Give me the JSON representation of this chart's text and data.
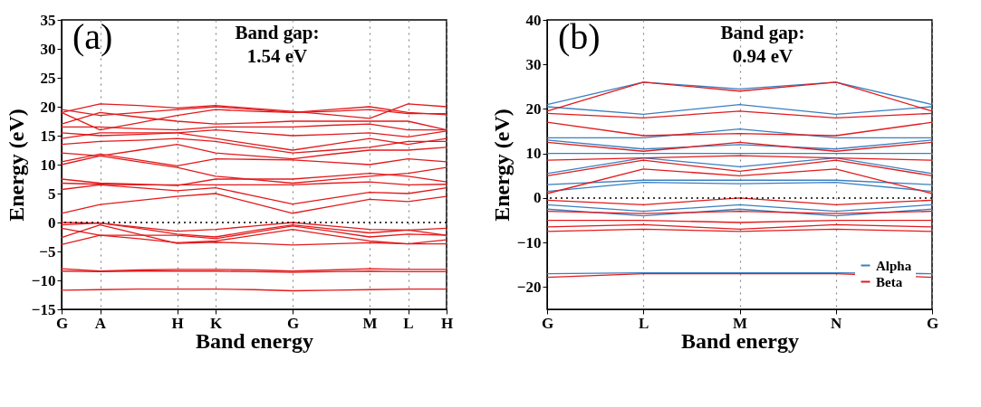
{
  "chart_data": [
    {
      "type": "line",
      "xlabel": "Band energy",
      "ylabel": "Energy (eV)",
      "annotations": [
        "(a)",
        "Band gap:",
        "1.54 eV"
      ],
      "categories": [
        "G",
        "A",
        null,
        "H",
        "K",
        null,
        "G",
        null,
        "M",
        "L",
        "H"
      ],
      "ylim": [
        -15,
        35
      ],
      "yticks": [
        -15,
        -10,
        -5,
        0,
        5,
        10,
        15,
        20,
        25,
        30,
        35
      ],
      "grid": "x",
      "legend": false,
      "ref_lines": [
        {
          "axis": "y",
          "value": 0,
          "color": "#000000",
          "line_style": "dotted"
        }
      ],
      "series": [
        {
          "color": "#e31a1c",
          "values": [
            -11.7,
            -11.6,
            -11.5,
            -11.5,
            -11.5,
            -11.6,
            -11.8,
            -11.7,
            -11.6,
            -11.5,
            -11.5
          ]
        },
        {
          "color": "#e31a1c",
          "values": [
            -8.0,
            -8.4,
            -8.2,
            -8.1,
            -8.1,
            -8.2,
            -8.4,
            -8.2,
            -8.0,
            -8.1,
            -8.1
          ]
        },
        {
          "color": "#e31a1c",
          "values": [
            -8.4,
            -8.5,
            -8.4,
            -8.4,
            -8.4,
            -8.5,
            -8.6,
            -8.5,
            -8.4,
            -8.5,
            -8.5
          ]
        },
        {
          "color": "#e31a1c",
          "values": [
            0,
            -0.1,
            -0.8,
            -1.5,
            -1.2,
            -0.6,
            0,
            -0.6,
            -1.2,
            -1.3,
            -1.0
          ]
        },
        {
          "color": "#e31a1c",
          "values": [
            -0.4,
            -0.1,
            -1.0,
            -2.0,
            -2.5,
            -1.4,
            -0.4,
            -1.1,
            -1.8,
            -1.3,
            -2.2
          ]
        },
        {
          "color": "#e31a1c",
          "values": [
            -1.0,
            -2.2,
            -2.2,
            -2.2,
            -2.8,
            -1.7,
            -0.6,
            -1.5,
            -2.5,
            -2.0,
            -2.2
          ]
        },
        {
          "color": "#e31a1c",
          "values": [
            -3.8,
            -2.2,
            -2.8,
            -3.5,
            -3.2,
            -2.2,
            -1.2,
            -2.2,
            -3.2,
            -3.7,
            -3.7
          ]
        },
        {
          "color": "#e31a1c",
          "values": [
            -2.6,
            -0.4,
            -2.0,
            -3.6,
            -3.4,
            -3.6,
            -3.9,
            -3.7,
            -3.5,
            -3.7,
            -3.0
          ]
        },
        {
          "color": "#e31a1c",
          "values": [
            1.6,
            3.1,
            3.8,
            4.5,
            5.0,
            3.3,
            1.6,
            2.8,
            4.0,
            3.6,
            4.5
          ]
        },
        {
          "color": "#e31a1c",
          "values": [
            5.7,
            6.5,
            6.0,
            5.5,
            6.0,
            4.6,
            3.2,
            4.2,
            5.2,
            5.0,
            6.0
          ]
        },
        {
          "color": "#e31a1c",
          "values": [
            6.8,
            6.6,
            6.5,
            6.5,
            6.5,
            6.5,
            6.5,
            6.8,
            7.0,
            6.5,
            6.6
          ]
        },
        {
          "color": "#e31a1c",
          "values": [
            7.5,
            6.8,
            6.6,
            6.4,
            7.5,
            7.5,
            7.5,
            8.0,
            8.5,
            8.0,
            7.0
          ]
        },
        {
          "color": "#e31a1c",
          "values": [
            10.0,
            11.5,
            10.5,
            9.5,
            8.0,
            7.4,
            6.8,
            7.4,
            8.0,
            8.5,
            9.5
          ]
        },
        {
          "color": "#e31a1c",
          "values": [
            10.5,
            11.8,
            10.8,
            9.8,
            11.0,
            10.9,
            10.8,
            10.4,
            10.0,
            11.0,
            10.5
          ]
        },
        {
          "color": "#e31a1c",
          "values": [
            12.0,
            11.5,
            12.5,
            13.5,
            12.0,
            11.5,
            11.0,
            11.8,
            12.5,
            12.5,
            13.0
          ]
        },
        {
          "color": "#e31a1c",
          "values": [
            13.5,
            14.0,
            14.2,
            14.5,
            14.0,
            13.0,
            12.0,
            12.5,
            13.0,
            14.0,
            14.0
          ]
        },
        {
          "color": "#e31a1c",
          "values": [
            14.5,
            15.5,
            15.5,
            15.5,
            14.5,
            13.5,
            12.5,
            13.5,
            14.5,
            13.5,
            14.5
          ]
        },
        {
          "color": "#e31a1c",
          "values": [
            15.5,
            15.0,
            15.2,
            15.5,
            16.0,
            15.5,
            15.0,
            15.2,
            15.5,
            14.8,
            15.8
          ]
        },
        {
          "color": "#e31a1c",
          "values": [
            16.5,
            16.5,
            16.2,
            16.0,
            16.5,
            16.5,
            16.5,
            16.8,
            17.0,
            16.0,
            16.0
          ]
        },
        {
          "color": "#e31a1c",
          "values": [
            17.0,
            19.0,
            18.2,
            17.5,
            17.0,
            17.2,
            17.5,
            17.5,
            17.5,
            17.5,
            16.0
          ]
        },
        {
          "color": "#e31a1c",
          "values": [
            19.0,
            16.0,
            17.2,
            18.5,
            19.5,
            19.2,
            19.0,
            19.5,
            20.0,
            19.0,
            18.6
          ]
        },
        {
          "color": "#e31a1c",
          "values": [
            19.5,
            18.5,
            19.0,
            19.5,
            20.0,
            19.5,
            19.0,
            19.2,
            19.5,
            18.8,
            18.8
          ]
        },
        {
          "color": "#e31a1c",
          "values": [
            19.0,
            20.5,
            20.2,
            19.8,
            20.2,
            19.7,
            19.2,
            18.6,
            18.0,
            20.5,
            20.0
          ]
        }
      ]
    },
    {
      "type": "line",
      "xlabel": "Band energy",
      "ylabel": "Energy (eV)",
      "annotations": [
        "(b)",
        "Band gap:",
        "0.94 eV"
      ],
      "categories": [
        "G",
        "L",
        "M",
        "N",
        "G"
      ],
      "ylim": [
        -25,
        40
      ],
      "yticks": [
        -20,
        -10,
        0,
        10,
        20,
        30,
        40
      ],
      "grid": "x",
      "legend": "bottom right",
      "ref_lines": [
        {
          "axis": "y",
          "value": 0,
          "color": "#000000",
          "line_style": "dotted"
        }
      ],
      "series": [
        {
          "name": "Alpha",
          "color": "#3a7fc1",
          "values": [
            -17,
            -16.8,
            -16.8,
            -16.8,
            -17
          ]
        },
        {
          "color": "#3a7fc1",
          "values": [
            -1.5,
            -3,
            -1.5,
            -3,
            -1.5
          ]
        },
        {
          "color": "#3a7fc1",
          "values": [
            -2.5,
            -4,
            -2.5,
            -4,
            -2.5
          ]
        },
        {
          "color": "#3a7fc1",
          "values": [
            1.5,
            3.5,
            3.2,
            3.5,
            1.5
          ]
        },
        {
          "color": "#3a7fc1",
          "values": [
            3,
            4,
            4,
            4,
            3
          ]
        },
        {
          "color": "#3a7fc1",
          "values": [
            5.5,
            9,
            7,
            9,
            5.5
          ]
        },
        {
          "color": "#3a7fc1",
          "values": [
            10,
            10,
            10,
            10,
            10
          ]
        },
        {
          "color": "#3a7fc1",
          "values": [
            13,
            11,
            12,
            11,
            13
          ]
        },
        {
          "color": "#3a7fc1",
          "values": [
            13.5,
            13.5,
            15.5,
            13.5,
            13.5
          ]
        },
        {
          "color": "#3a7fc1",
          "values": [
            20.5,
            18.8,
            21,
            18.8,
            20.5
          ]
        },
        {
          "color": "#3a7fc1",
          "values": [
            21,
            26,
            24.5,
            26,
            21
          ]
        },
        {
          "name": "Beta",
          "color": "#e31a1c",
          "values": [
            -17.8,
            -17,
            -17,
            -17,
            -17.8
          ]
        },
        {
          "color": "#e31a1c",
          "values": [
            -0.5,
            -1.5,
            0,
            -1.5,
            -0.5
          ]
        },
        {
          "color": "#e31a1c",
          "values": [
            -3,
            -3.5,
            -3,
            -3.5,
            -3
          ]
        },
        {
          "color": "#e31a1c",
          "values": [
            -5,
            -5,
            -5.5,
            -5,
            -5
          ]
        },
        {
          "color": "#e31a1c",
          "values": [
            -6.5,
            -6,
            -7,
            -6,
            -6.5
          ]
        },
        {
          "color": "#e31a1c",
          "values": [
            -7.5,
            -7,
            -7.5,
            -7,
            -7.5
          ]
        },
        {
          "color": "#e31a1c",
          "values": [
            1,
            6.5,
            5,
            6.5,
            1
          ]
        },
        {
          "color": "#e31a1c",
          "values": [
            5,
            8.5,
            6,
            8.5,
            5
          ]
        },
        {
          "color": "#e31a1c",
          "values": [
            8.5,
            9,
            9.5,
            9,
            8.5
          ]
        },
        {
          "color": "#e31a1c",
          "values": [
            12.5,
            10.5,
            12.5,
            10.5,
            12.5
          ]
        },
        {
          "color": "#e31a1c",
          "values": [
            17,
            14,
            14.5,
            14,
            17
          ]
        },
        {
          "color": "#e31a1c",
          "values": [
            19,
            18,
            19.5,
            18,
            19
          ]
        },
        {
          "color": "#e31a1c",
          "values": [
            19.5,
            26,
            24,
            26,
            19.5
          ]
        }
      ]
    }
  ]
}
